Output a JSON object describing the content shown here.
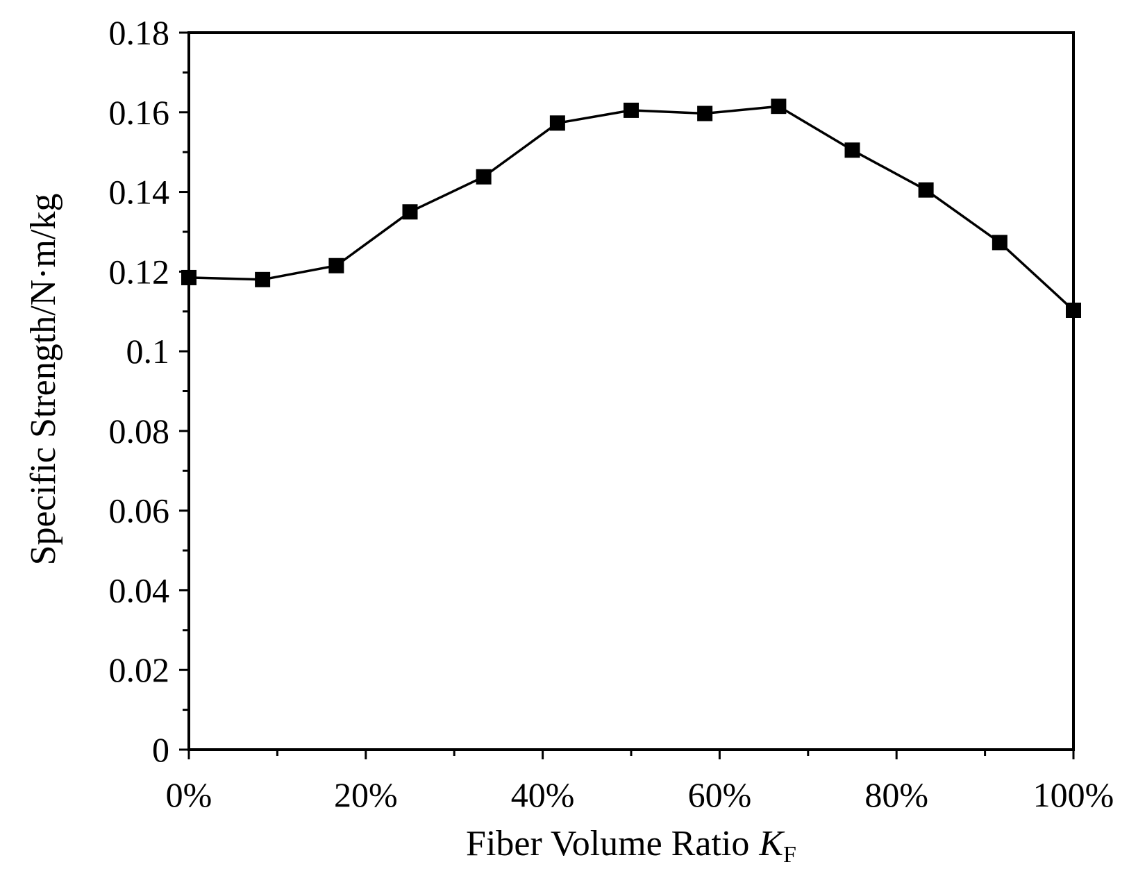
{
  "chart_data": {
    "type": "line",
    "title": "",
    "xlabel": "Fiber Volume Ratio",
    "xlabel_symbol": "K",
    "xlabel_subscript": "F",
    "ylabel": "Specific Strength/N·m/kg",
    "xlim": [
      0,
      100
    ],
    "ylim": [
      0,
      0.18
    ],
    "x_ticks": [
      0,
      20,
      40,
      60,
      80,
      100
    ],
    "x_tick_labels": [
      "0%",
      "20%",
      "40%",
      "60%",
      "80%",
      "100%"
    ],
    "y_ticks": [
      0,
      0.02,
      0.04,
      0.06,
      0.08,
      0.1,
      0.12,
      0.14,
      0.16,
      0.18
    ],
    "y_tick_labels": [
      "0",
      "0.02",
      "0.04",
      "0.06",
      "0.08",
      "0.1",
      "0.12",
      "0.14",
      "0.16",
      "0.18"
    ],
    "grid": false,
    "legend": "none",
    "marker": "square",
    "line_color": "#000000",
    "series": [
      {
        "x": [
          0,
          8.33,
          16.67,
          25,
          33.33,
          41.67,
          50,
          58.33,
          66.67,
          75,
          83.33,
          91.67,
          100
        ],
        "y": [
          0.1185,
          0.118,
          0.1215,
          0.135,
          0.1438,
          0.1573,
          0.1605,
          0.1597,
          0.1615,
          0.1505,
          0.1405,
          0.1273,
          0.1103
        ]
      }
    ]
  }
}
